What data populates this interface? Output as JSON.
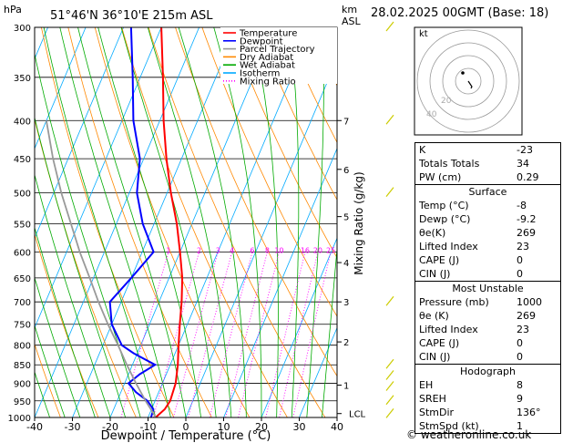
{
  "header": {
    "hpa_label": "hPa",
    "location": "51°46'N  36°10'E  215m  ASL",
    "km_label": "km",
    "asl_label": "ASL",
    "datetime": "28.02.2025  00GMT  (Base: 18)"
  },
  "chart_data": {
    "type": "line",
    "subtype": "skew-t log-p",
    "xlabel": "Dewpoint / Temperature (°C)",
    "ylabel": "hPa",
    "y2label": "Mixing Ratio (g/kg)",
    "xlim": [
      -40,
      40
    ],
    "ylim": [
      1000,
      300
    ],
    "y_scale": "log",
    "x_ticks": [
      -40,
      -30,
      -20,
      -10,
      0,
      10,
      20,
      30,
      40
    ],
    "pressure_ticks": [
      300,
      350,
      400,
      450,
      500,
      550,
      600,
      650,
      700,
      750,
      800,
      850,
      900,
      950,
      1000
    ],
    "km_ticks": [
      {
        "label": "7",
        "p": 400
      },
      {
        "label": "6",
        "p": 465
      },
      {
        "label": "5",
        "p": 538
      },
      {
        "label": "4",
        "p": 620
      },
      {
        "label": "3",
        "p": 700
      },
      {
        "label": "2",
        "p": 792
      },
      {
        "label": "1",
        "p": 905
      },
      {
        "label": "LCL",
        "p": 988
      }
    ],
    "mixing_ratio_labels": [
      "1",
      "2",
      "3",
      "4",
      "6",
      "8",
      "10",
      "16",
      "20",
      "25"
    ],
    "legend": {
      "placement": "top-left",
      "entries": [
        {
          "name": "Temperature",
          "color": "#ff0000",
          "style": "solid"
        },
        {
          "name": "Dewpoint",
          "color": "#0000ff",
          "style": "solid"
        },
        {
          "name": "Parcel Trajectory",
          "color": "#999999",
          "style": "solid"
        },
        {
          "name": "Dry Adiabat",
          "color": "#ff8800",
          "style": "solid"
        },
        {
          "name": "Wet Adiabat",
          "color": "#00aa00",
          "style": "solid"
        },
        {
          "name": "Isotherm",
          "color": "#00aaff",
          "style": "solid"
        },
        {
          "name": "Mixing Ratio",
          "color": "#ff00ff",
          "style": "dotted"
        }
      ]
    },
    "series": [
      {
        "name": "Temperature",
        "color": "#ff0000",
        "points": [
          [
            1000,
            -8
          ],
          [
            975,
            -6.5
          ],
          [
            950,
            -6
          ],
          [
            900,
            -6.5
          ],
          [
            850,
            -8
          ],
          [
            800,
            -10
          ],
          [
            750,
            -12
          ],
          [
            700,
            -14
          ],
          [
            650,
            -16.5
          ],
          [
            600,
            -20
          ],
          [
            550,
            -24
          ],
          [
            500,
            -29
          ],
          [
            450,
            -34
          ],
          [
            400,
            -39
          ],
          [
            350,
            -44
          ],
          [
            300,
            -50
          ]
        ]
      },
      {
        "name": "Dewpoint",
        "color": "#0000ff",
        "points": [
          [
            1000,
            -9.2
          ],
          [
            975,
            -9.5
          ],
          [
            950,
            -12
          ],
          [
            925,
            -16
          ],
          [
            900,
            -19
          ],
          [
            875,
            -17
          ],
          [
            850,
            -14
          ],
          [
            820,
            -21
          ],
          [
            800,
            -25
          ],
          [
            750,
            -30
          ],
          [
            700,
            -33
          ],
          [
            650,
            -30
          ],
          [
            600,
            -27
          ],
          [
            550,
            -33
          ],
          [
            500,
            -38
          ],
          [
            450,
            -41
          ],
          [
            400,
            -47
          ],
          [
            350,
            -52
          ],
          [
            300,
            -58
          ]
        ]
      },
      {
        "name": "Parcel Trajectory",
        "color": "#999999",
        "points": [
          [
            1000,
            -8
          ],
          [
            988,
            -9
          ],
          [
            950,
            -12.5
          ],
          [
            900,
            -17
          ],
          [
            850,
            -21.5
          ],
          [
            800,
            -26
          ],
          [
            750,
            -31
          ],
          [
            700,
            -36
          ],
          [
            650,
            -41
          ],
          [
            600,
            -46.5
          ],
          [
            550,
            -52
          ],
          [
            500,
            -58
          ],
          [
            450,
            -64
          ],
          [
            400,
            -70
          ]
        ]
      }
    ],
    "wind_barb_color": "#cccc00"
  },
  "hodograph": {
    "unit_label": "kt",
    "ring_labels": [
      "20",
      "40"
    ]
  },
  "indices": {
    "rows": [
      {
        "label": "K",
        "value": "-23"
      },
      {
        "label": "Totals Totals",
        "value": "34"
      },
      {
        "label": "PW (cm)",
        "value": "0.29"
      }
    ]
  },
  "surface": {
    "title": "Surface",
    "rows": [
      {
        "label": "Temp (°C)",
        "value": "-8"
      },
      {
        "label": "Dewp (°C)",
        "value": "-9.2"
      },
      {
        "label": "θe(K)",
        "value": "269"
      },
      {
        "label": "Lifted Index",
        "value": "23"
      },
      {
        "label": "CAPE (J)",
        "value": "0"
      },
      {
        "label": "CIN (J)",
        "value": "0"
      }
    ]
  },
  "most_unstable": {
    "title": "Most Unstable",
    "rows": [
      {
        "label": "Pressure (mb)",
        "value": "1000"
      },
      {
        "label": "θe (K)",
        "value": "269"
      },
      {
        "label": "Lifted Index",
        "value": "23"
      },
      {
        "label": "CAPE (J)",
        "value": "0"
      },
      {
        "label": "CIN (J)",
        "value": "0"
      }
    ]
  },
  "hodograph_table": {
    "title": "Hodograph",
    "rows": [
      {
        "label": "EH",
        "value": "8"
      },
      {
        "label": "SREH",
        "value": "9"
      },
      {
        "label": "StmDir",
        "value": "136°"
      },
      {
        "label": "StmSpd (kt)",
        "value": "1"
      }
    ]
  },
  "footer": {
    "copyright": "© weatheronline.co.uk"
  }
}
